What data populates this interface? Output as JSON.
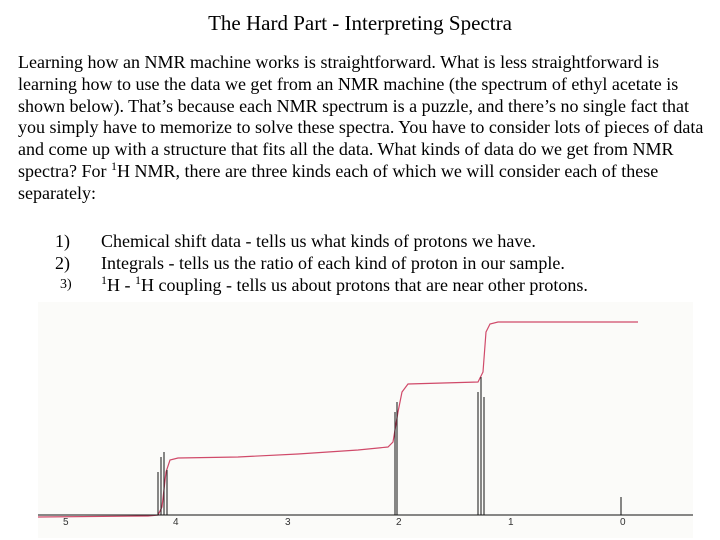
{
  "title": "The Hard Part - Interpreting Spectra",
  "paragraph": {
    "before_sup1": "Learning how an NMR machine works is straightforward.  What is less straightforward is learning how to use the data we get from an NMR machine (the spectrum of ethyl acetate is shown below).  That’s because each NMR spectrum is a puzzle, and there’s no single fact that you simply have to memorize to solve these spectra.  You have to consider lots of pieces of data and come up with a structure that fits all the data.  What kinds of data do we get from NMR spectra?  For ",
    "sup1": "1",
    "after_sup1": "H NMR, there are three kinds each of which we will consider each of these separately:"
  },
  "list": [
    {
      "number": "1)",
      "text": "Chemical shift data - tells us what kinds of protons we have."
    },
    {
      "number": "2)",
      "text": "Integrals - tells us the ratio of each kind of proton in our sample."
    },
    {
      "number": "3)",
      "sup_a": "1",
      "text_a": "H - ",
      "sup_b": "1",
      "text_b": "H coupling - tells us about protons that are near other protons."
    }
  ],
  "spectrum": {
    "axis_ticks": [
      "5",
      "4",
      "3",
      "2",
      "1",
      "0"
    ],
    "line_color": "#111111",
    "integral_color": "#d04a6a",
    "background": "#fbfbf9"
  }
}
